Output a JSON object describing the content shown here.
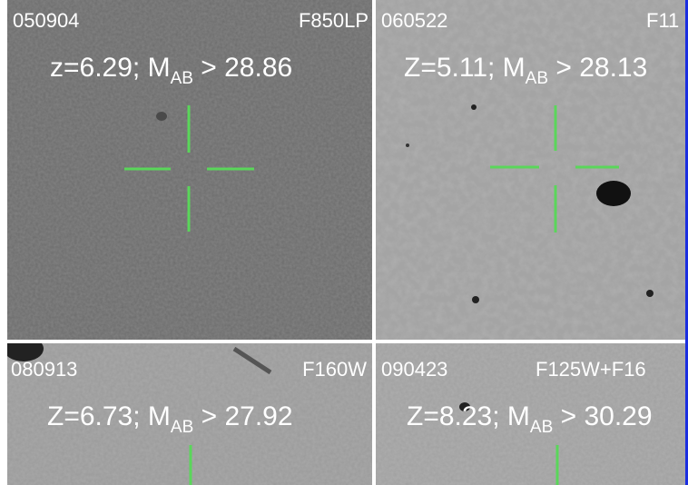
{
  "panels": [
    {
      "id": "050904",
      "filter": "F850LP",
      "label_prefix": "z=6.29; M",
      "label_sub": "AB",
      "label_suffix": " > 28.86"
    },
    {
      "id": "060522",
      "filter": "F11",
      "label_prefix": "Z=5.11; M",
      "label_sub": "AB",
      "label_suffix": " > 28.13"
    },
    {
      "id": "080913",
      "filter": "F160W",
      "label_prefix": "Z=6.73; M",
      "label_sub": "AB",
      "label_suffix": " > 27.92"
    },
    {
      "id": "090423",
      "filter": "F125W+F16",
      "label_prefix": "Z=8.23; M",
      "label_sub": "AB",
      "label_suffix": " > 30.29"
    }
  ]
}
